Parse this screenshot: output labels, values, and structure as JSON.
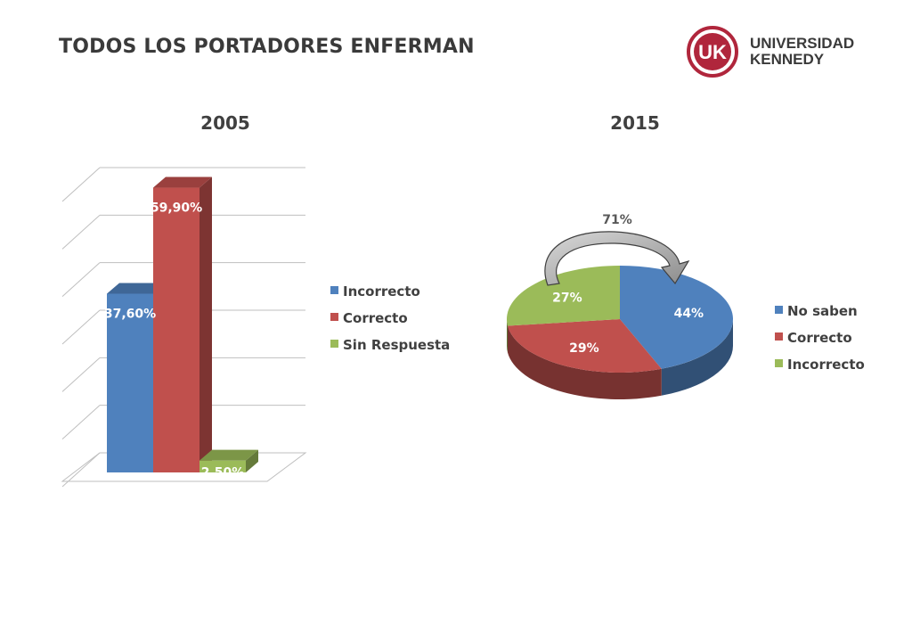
{
  "page": {
    "title": "TODOS LOS PORTADORES ENFERMAN"
  },
  "logo": {
    "mark": "UK",
    "line1": "UNIVERSIDAD",
    "line2": "KENNEDY",
    "color": "#b0263c"
  },
  "chart_data": [
    {
      "type": "bar",
      "title": "2005",
      "categories": [
        "Incorrecto",
        "Correcto",
        "Sin Respuesta"
      ],
      "values": [
        37.6,
        59.9,
        2.5
      ],
      "data_labels": [
        "37,60%",
        "59,90%",
        "2,50%"
      ],
      "colors": [
        "#4f81bd",
        "#c0504d",
        "#9bbb59"
      ],
      "ylim": [
        0,
        60
      ],
      "grid": true,
      "legend": "right",
      "legend_entries": [
        "Incorrecto",
        "Correcto",
        "Sin Respuesta"
      ]
    },
    {
      "type": "pie",
      "title": "2015",
      "categories": [
        "No saben",
        "Correcto",
        "Incorrecto"
      ],
      "values": [
        44,
        29,
        27
      ],
      "data_labels": [
        "44%",
        "29%",
        "27%"
      ],
      "colors": [
        "#4f81bd",
        "#c0504d",
        "#9bbb59"
      ],
      "legend": "right",
      "legend_entries": [
        "No saben",
        "Correcto",
        "Incorrecto"
      ],
      "annotation": "71%"
    }
  ]
}
